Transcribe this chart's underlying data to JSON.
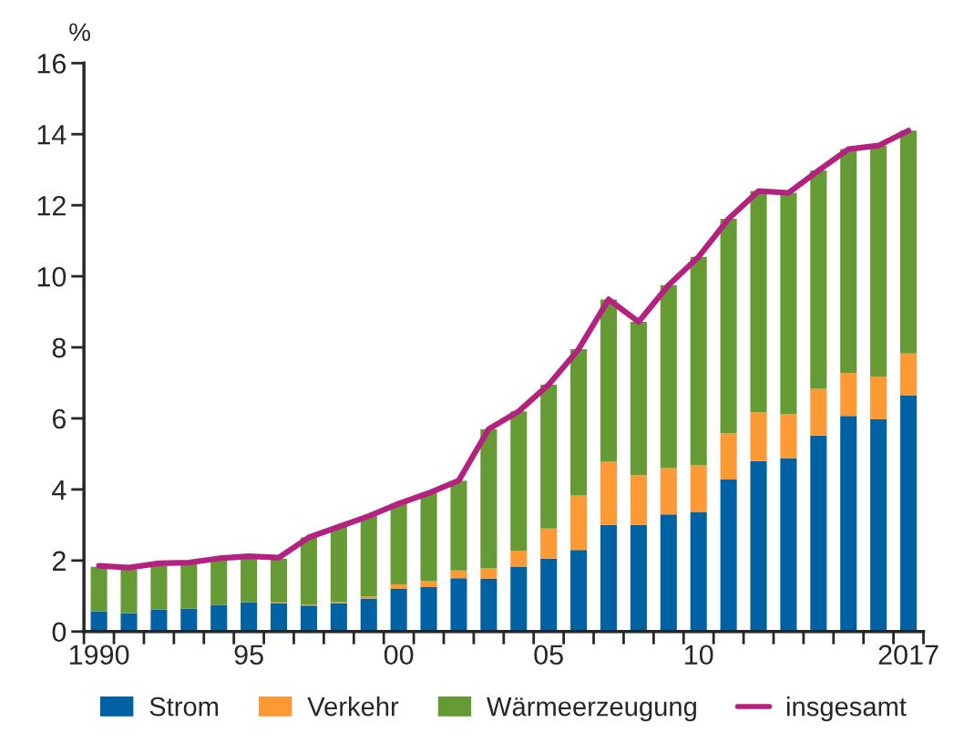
{
  "chart_data": {
    "type": "bar",
    "stacked": true,
    "ylabel": "%",
    "categories": [
      "1990",
      null,
      null,
      null,
      null,
      "95",
      null,
      null,
      null,
      null,
      "00",
      null,
      null,
      null,
      null,
      "05",
      null,
      null,
      null,
      null,
      "10",
      null,
      null,
      null,
      null,
      null,
      null,
      "2017"
    ],
    "series": [
      {
        "name": "Strom",
        "color": "#0062a3",
        "values": [
          0.57,
          0.52,
          0.62,
          0.65,
          0.75,
          0.82,
          0.8,
          0.73,
          0.8,
          0.93,
          1.2,
          1.25,
          1.5,
          1.48,
          1.83,
          2.05,
          2.3,
          3.0,
          3.0,
          3.3,
          3.37,
          4.28,
          4.8,
          4.88,
          5.52,
          6.07,
          5.97,
          6.65
        ]
      },
      {
        "name": "Verkehr",
        "color": "#fd9a35",
        "values": [
          0,
          0,
          0,
          0,
          0,
          0,
          0.02,
          0.03,
          0.03,
          0.05,
          0.13,
          0.17,
          0.22,
          0.3,
          0.45,
          0.85,
          1.53,
          1.78,
          1.4,
          1.3,
          1.31,
          1.3,
          1.37,
          1.24,
          1.31,
          1.21,
          1.21,
          1.18
        ]
      },
      {
        "name": "Wärmeerzeugung",
        "color": "#669a34",
        "values": [
          1.25,
          1.23,
          1.23,
          1.25,
          1.25,
          1.26,
          1.23,
          1.89,
          2.12,
          2.27,
          2.27,
          2.48,
          2.53,
          3.92,
          3.92,
          4.05,
          4.12,
          4.57,
          4.32,
          5.15,
          5.87,
          6.04,
          6.23,
          6.23,
          6.15,
          6.3,
          6.5,
          6.27
        ]
      },
      {
        "name": "insgesamt",
        "type": "line",
        "color": "#b5217f",
        "values": [
          1.85,
          1.8,
          1.92,
          1.94,
          2.06,
          2.12,
          2.08,
          2.65,
          2.95,
          3.25,
          3.6,
          3.9,
          4.25,
          5.7,
          6.2,
          6.95,
          7.95,
          9.35,
          8.72,
          9.75,
          10.55,
          11.62,
          12.4,
          12.35,
          12.98,
          13.58,
          13.68,
          14.1
        ]
      }
    ],
    "ylim": [
      0,
      16
    ],
    "yticks": [
      0,
      2,
      4,
      6,
      8,
      10,
      12,
      14,
      16
    ],
    "grid": false,
    "legend": "bottom",
    "marker": "none",
    "line_style": "solid"
  }
}
